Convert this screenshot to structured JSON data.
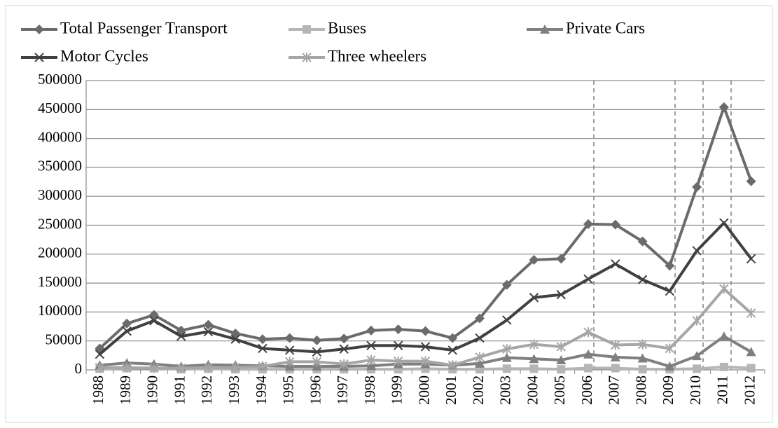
{
  "chart_data": {
    "type": "line",
    "categories": [
      "1988",
      "1989",
      "1990",
      "1991",
      "1992",
      "1993",
      "1994",
      "1995",
      "1996",
      "1997",
      "1998",
      "1999",
      "2000",
      "2001",
      "2002",
      "2003",
      "2004",
      "2005",
      "2006",
      "2007",
      "2008",
      "2009",
      "2010",
      "2011",
      "2012"
    ],
    "series": [
      {
        "name": "Total Passenger Transport",
        "color": "#6b6b6b",
        "marker": "diamond",
        "values": [
          37000,
          80000,
          95000,
          68000,
          78000,
          63000,
          53000,
          55000,
          51000,
          54000,
          68000,
          70000,
          67000,
          55000,
          89000,
          147000,
          190000,
          192000,
          252000,
          251000,
          222000,
          180000,
          316000,
          454000,
          326000
        ]
      },
      {
        "name": "Buses",
        "color": "#b5b5b5",
        "marker": "square",
        "values": [
          2000,
          3000,
          3000,
          1000,
          2000,
          1000,
          1000,
          1000,
          1000,
          1000,
          1000,
          1000,
          2000,
          1000,
          1000,
          2000,
          2000,
          1000,
          3000,
          3000,
          1000,
          1000,
          2000,
          5000,
          3000
        ]
      },
      {
        "name": "Private Cars",
        "color": "#7f7f7f",
        "marker": "triangle",
        "values": [
          8000,
          12000,
          10000,
          6000,
          9000,
          8000,
          7000,
          6000,
          6000,
          6000,
          7000,
          10000,
          10000,
          8000,
          11000,
          21000,
          19000,
          17000,
          27000,
          22000,
          20000,
          6000,
          24000,
          58000,
          31000
        ]
      },
      {
        "name": "Motor Cycles",
        "color": "#404040",
        "marker": "x",
        "values": [
          27000,
          67000,
          85000,
          58000,
          66000,
          53000,
          37000,
          34000,
          31000,
          36000,
          42000,
          42000,
          40000,
          34000,
          55000,
          86000,
          125000,
          130000,
          157000,
          183000,
          156000,
          136000,
          206000,
          254000,
          192000
        ]
      },
      {
        "name": "Three wheelers",
        "color": "#a6a6a6",
        "marker": "star",
        "values": [
          4000,
          4000,
          3000,
          3000,
          4000,
          4000,
          6000,
          14000,
          14000,
          10000,
          17000,
          15000,
          15000,
          8000,
          22000,
          36000,
          44000,
          40000,
          65000,
          43000,
          44000,
          37000,
          85000,
          140000,
          98000
        ]
      }
    ],
    "ylim": [
      0,
      500000
    ],
    "yticks": [
      0,
      50000,
      100000,
      150000,
      200000,
      250000,
      300000,
      350000,
      400000,
      450000,
      500000
    ],
    "grid": true
  }
}
